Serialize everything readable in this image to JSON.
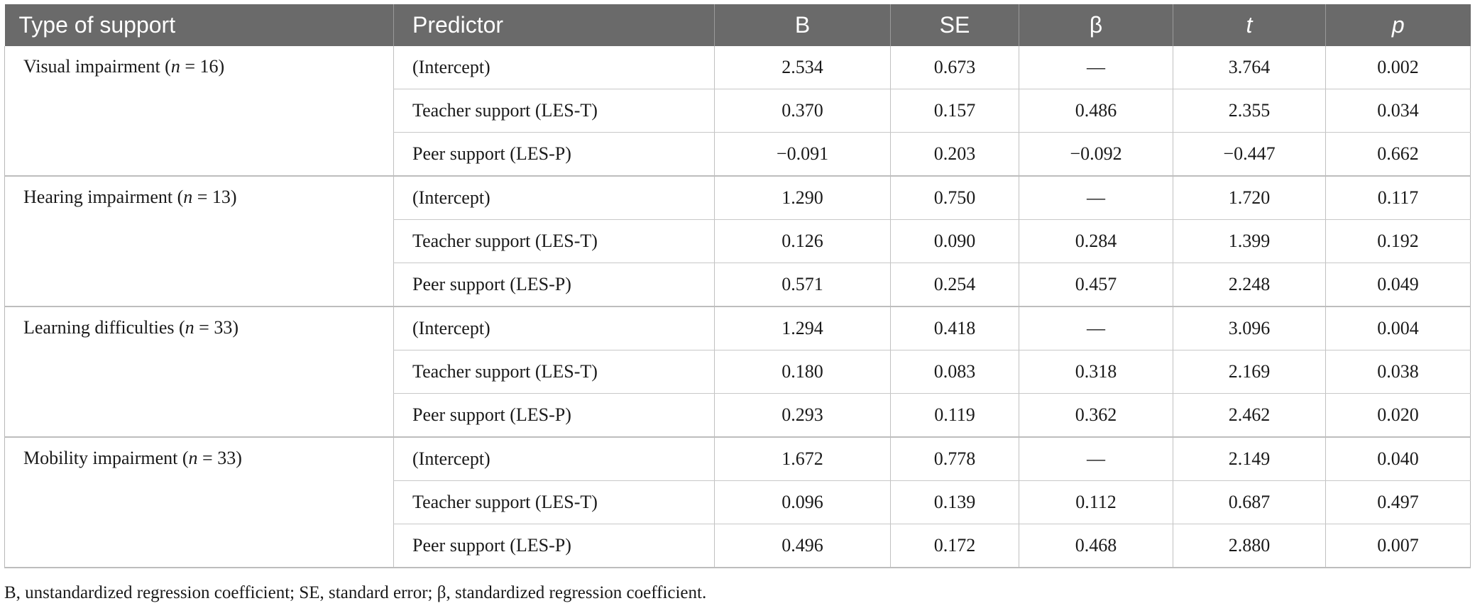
{
  "table": {
    "headers": [
      "Type of support",
      "Predictor",
      "B",
      "SE",
      "β",
      "t",
      "p"
    ],
    "groups": [
      {
        "label_prefix": "Visual impairment (",
        "n_label": "n",
        "label_suffix": " = 16)",
        "rows": [
          [
            "(Intercept)",
            "2.534",
            "0.673",
            "—",
            "3.764",
            "0.002"
          ],
          [
            "Teacher support (LES-T)",
            "0.370",
            "0.157",
            "0.486",
            "2.355",
            "0.034"
          ],
          [
            "Peer support (LES-P)",
            "−0.091",
            "0.203",
            "−0.092",
            "−0.447",
            "0.662"
          ]
        ]
      },
      {
        "label_prefix": "Hearing impairment (",
        "n_label": "n",
        "label_suffix": " = 13)",
        "rows": [
          [
            "(Intercept)",
            "1.290",
            "0.750",
            "—",
            "1.720",
            "0.117"
          ],
          [
            "Teacher support (LES-T)",
            "0.126",
            "0.090",
            "0.284",
            "1.399",
            "0.192"
          ],
          [
            "Peer support (LES-P)",
            "0.571",
            "0.254",
            "0.457",
            "2.248",
            "0.049"
          ]
        ]
      },
      {
        "label_prefix": "Learning difficulties (",
        "n_label": "n",
        "label_suffix": " = 33)",
        "rows": [
          [
            "(Intercept)",
            "1.294",
            "0.418",
            "—",
            "3.096",
            "0.004"
          ],
          [
            "Teacher support (LES-T)",
            "0.180",
            "0.083",
            "0.318",
            "2.169",
            "0.038"
          ],
          [
            "Peer support (LES-P)",
            "0.293",
            "0.119",
            "0.362",
            "2.462",
            "0.020"
          ]
        ]
      },
      {
        "label_prefix": "Mobility impairment (",
        "n_label": "n",
        "label_suffix": " = 33)",
        "rows": [
          [
            "(Intercept)",
            "1.672",
            "0.778",
            "—",
            "2.149",
            "0.040"
          ],
          [
            "Teacher support (LES-T)",
            "0.096",
            "0.139",
            "0.112",
            "0.687",
            "0.497"
          ],
          [
            "Peer support (LES-P)",
            "0.496",
            "0.172",
            "0.468",
            "2.880",
            "0.007"
          ]
        ]
      }
    ]
  },
  "footnote": "B, unstandardized regression coefficient; SE, standard error; β, standardized regression coefficient."
}
